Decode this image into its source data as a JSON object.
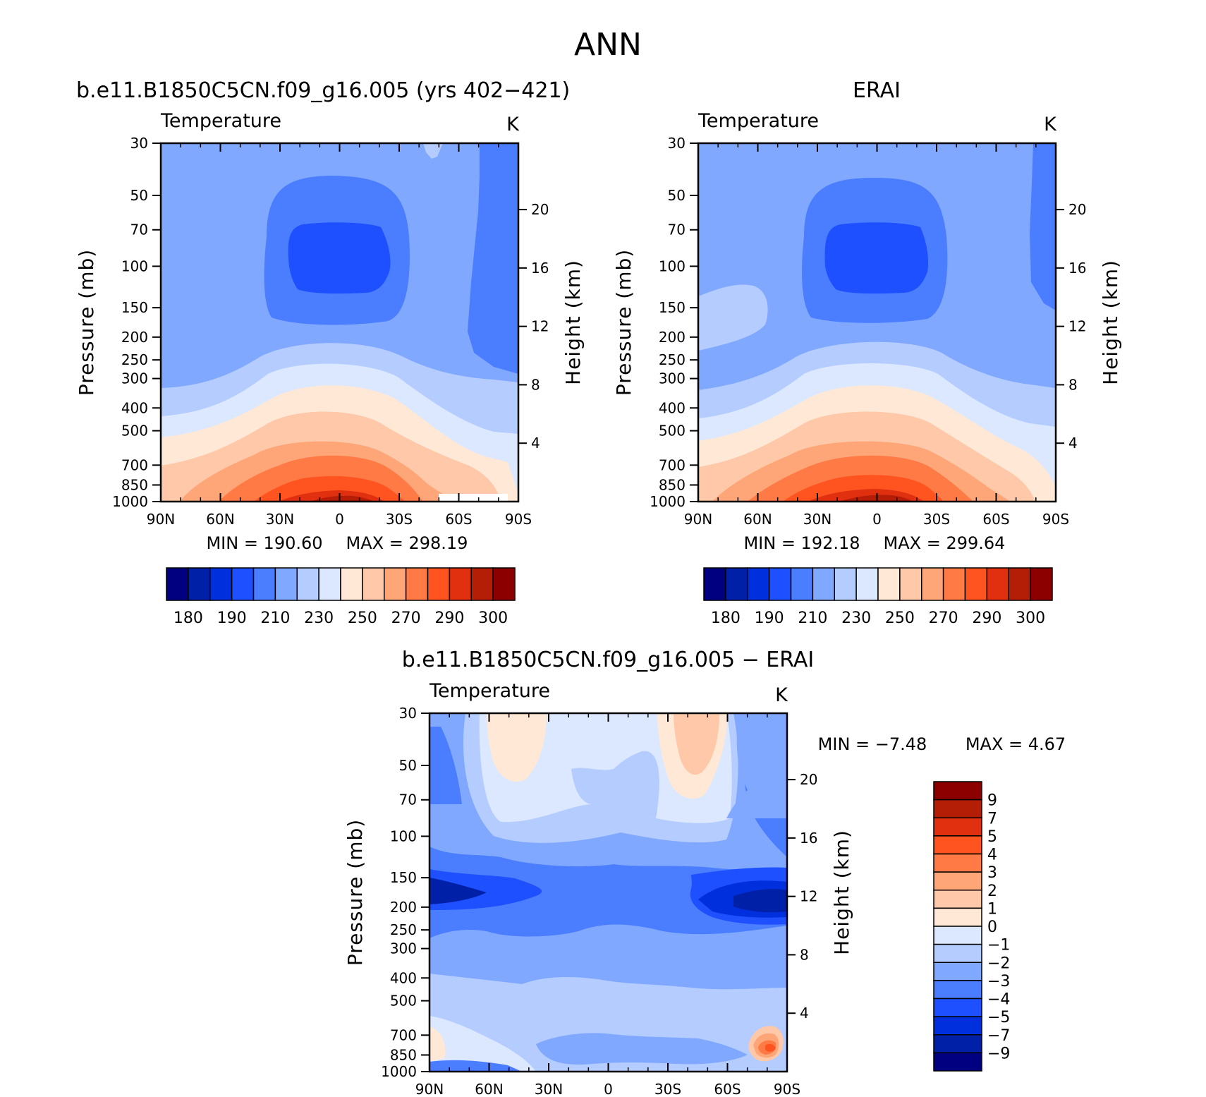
{
  "figure": {
    "title": "ANN"
  },
  "chart_data": [
    {
      "type": "heatmap",
      "panel": "model",
      "title": "b.e11.B1850C5CN.f09_g16.005 (yrs 402−421)",
      "variable": "Temperature",
      "units": "K",
      "xlabel": "",
      "ylabel": "Pressure (mb)",
      "ylabel_right": "Height (km)",
      "xticks": [
        "90N",
        "60N",
        "30N",
        "0",
        "30S",
        "60S",
        "90S"
      ],
      "yticks": [
        "30",
        "50",
        "70",
        "100",
        "150",
        "200",
        "250",
        "300",
        "400",
        "500",
        "700",
        "850",
        "1000"
      ],
      "ylim": [
        30,
        1000
      ],
      "yticks_right": [
        "20",
        "16",
        "12",
        "8",
        "4"
      ],
      "min_label": "MIN = 190.60",
      "max_label": "MAX = 298.19",
      "min": 190.6,
      "max": 298.19,
      "colorbar_labels": [
        "180",
        "190",
        "210",
        "230",
        "250",
        "270",
        "290",
        "300"
      ],
      "colorbar_colors": [
        "#000080",
        "#0020a8",
        "#0030dd",
        "#1e50ff",
        "#4a7dff",
        "#80a8ff",
        "#b4ccff",
        "#dbe8ff",
        "#ffe8d6",
        "#ffc8a8",
        "#ffa678",
        "#ff7a45",
        "#ff5420",
        "#e03010",
        "#b41e06",
        "#8c0000"
      ]
    },
    {
      "type": "heatmap",
      "panel": "obs",
      "title": "ERAI",
      "variable": "Temperature",
      "units": "K",
      "xlabel": "",
      "ylabel": "Pressure (mb)",
      "ylabel_right": "Height (km)",
      "xticks": [
        "90N",
        "60N",
        "30N",
        "0",
        "30S",
        "60S",
        "90S"
      ],
      "yticks": [
        "30",
        "50",
        "70",
        "100",
        "150",
        "200",
        "250",
        "300",
        "400",
        "500",
        "700",
        "850",
        "1000"
      ],
      "ylim": [
        30,
        1000
      ],
      "yticks_right": [
        "20",
        "16",
        "12",
        "8",
        "4"
      ],
      "min_label": "MIN = 192.18",
      "max_label": "MAX = 299.64",
      "min": 192.18,
      "max": 299.64,
      "colorbar_labels": [
        "180",
        "190",
        "210",
        "230",
        "250",
        "270",
        "290",
        "300"
      ],
      "colorbar_colors": [
        "#000080",
        "#0020a8",
        "#0030dd",
        "#1e50ff",
        "#4a7dff",
        "#80a8ff",
        "#b4ccff",
        "#dbe8ff",
        "#ffe8d6",
        "#ffc8a8",
        "#ffa678",
        "#ff7a45",
        "#ff5420",
        "#e03010",
        "#b41e06",
        "#8c0000"
      ]
    },
    {
      "type": "heatmap",
      "panel": "diff",
      "title": "b.e11.B1850C5CN.f09_g16.005 − ERAI",
      "variable": "Temperature",
      "units": "K",
      "xlabel": "",
      "ylabel": "Pressure (mb)",
      "ylabel_right": "Height (km)",
      "xticks": [
        "90N",
        "60N",
        "30N",
        "0",
        "30S",
        "60S",
        "90S"
      ],
      "yticks": [
        "30",
        "50",
        "70",
        "100",
        "150",
        "200",
        "250",
        "300",
        "400",
        "500",
        "700",
        "850",
        "1000"
      ],
      "ylim": [
        30,
        1000
      ],
      "yticks_right": [
        "20",
        "16",
        "12",
        "8",
        "4"
      ],
      "min_label": "MIN = −7.48",
      "max_label": "MAX = 4.67",
      "min": -7.48,
      "max": 4.67,
      "colorbar_labels": [
        "9",
        "7",
        "5",
        "4",
        "3",
        "2",
        "1",
        "0",
        "−1",
        "−2",
        "−3",
        "−4",
        "−5",
        "−7",
        "−9"
      ],
      "colorbar_colors": [
        "#8c0000",
        "#b41e06",
        "#e03010",
        "#ff5420",
        "#ff7a45",
        "#ffa678",
        "#ffc8a8",
        "#ffe8d6",
        "#dbe8ff",
        "#b4ccff",
        "#80a8ff",
        "#4a7dff",
        "#1e50ff",
        "#0030dd",
        "#0020a8",
        "#000080"
      ]
    }
  ]
}
